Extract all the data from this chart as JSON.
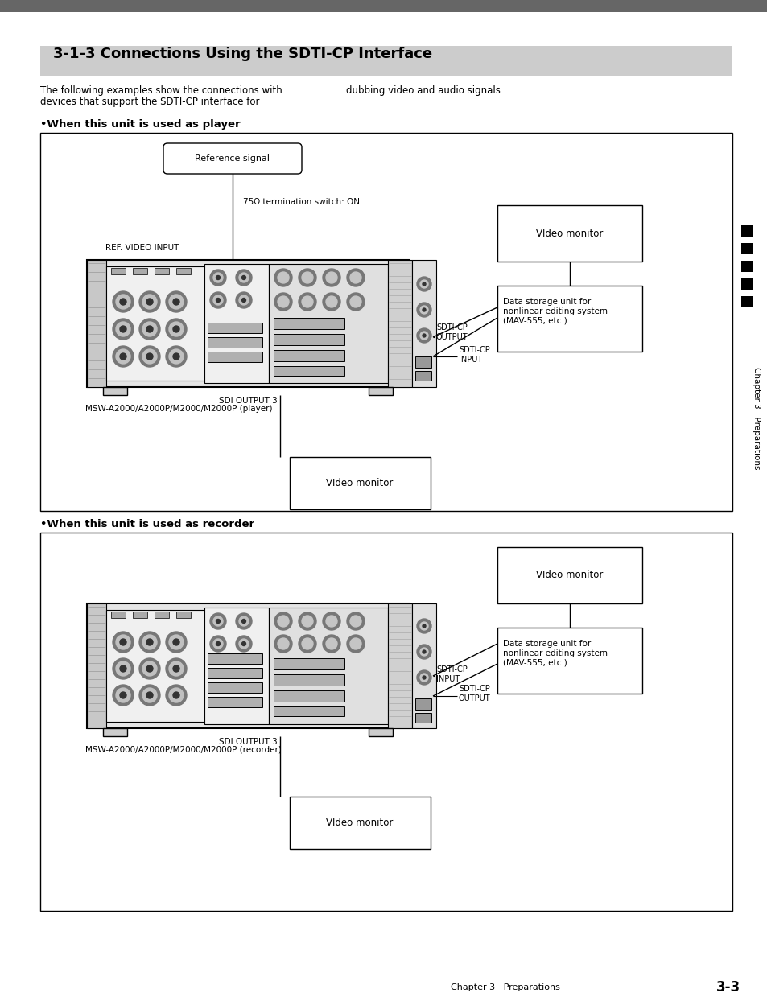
{
  "title": "3-1-3 Connections Using the SDTI-CP Interface",
  "body_text1": "The following examples show the connections with",
  "body_text2": "devices that support the SDTI-CP interface for",
  "body_text3": "dubbing video and audio signals.",
  "player_title": "•When this unit is used as player",
  "recorder_title": "•When this unit is used as recorder",
  "ref_signal": "Reference signal",
  "termination": "75Ω termination switch: ON",
  "ref_video_input": "REF. VIDEO INPUT",
  "p_sdti_cp_output": "SDTI-CP\nOUTPUT",
  "p_sdti_cp_input": "SDTI-CP\nINPUT",
  "p_sdi_output3": "SDI OUTPUT 3",
  "p_model_label": "MSW-A2000/A2000P/M2000/M2000P (player)",
  "p_video_monitor_top": "VIdeo monitor",
  "p_video_monitor_bottom": "VIdeo monitor",
  "p_data_storage": "Data storage unit for\nnonlinear editing system\n(MAV-555, etc.)",
  "r_sdti_cp_input": "SDTI-CP\nINPUT",
  "r_sdti_cp_output": "SDTI-CP\nOUTPUT",
  "r_sdi_output3": "SDI OUTPUT 3",
  "r_model_label": "MSW-A2000/A2000P/M2000/M2000P (recorder)",
  "r_video_monitor_top": "VIdeo monitor",
  "r_video_monitor_bottom": "VIdeo monitor",
  "r_data_storage": "Data storage unit for\nnonlinear editing system\n(MAV-555, etc.)",
  "footer_text": "Chapter 3   Preparations",
  "footer_page": "3-3",
  "sidebar_text": "Chapter 3   Preparations",
  "top_bar_color": "#666666",
  "header_bg": "#c8c8c8",
  "bg_color": "#ffffff"
}
